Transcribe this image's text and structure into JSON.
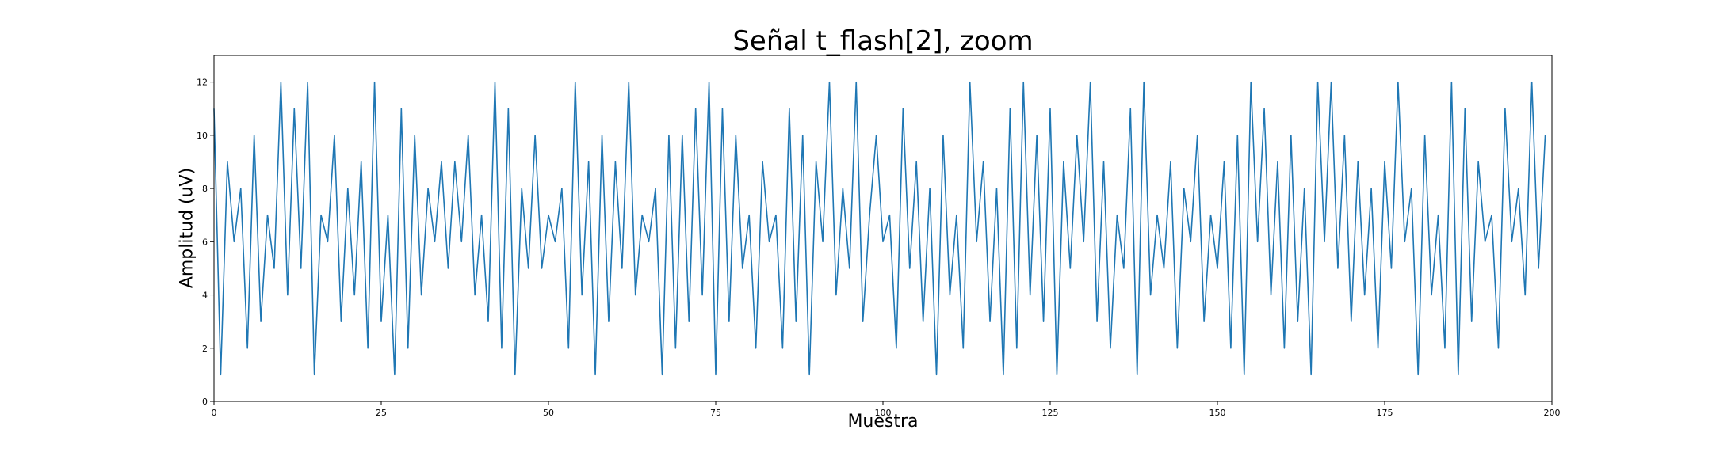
{
  "chart_data": {
    "type": "line",
    "title": "Señal t_flash[2], zoom",
    "xlabel": "Muestra",
    "ylabel": "Amplitud (uV)",
    "xlim": [
      0,
      200
    ],
    "ylim": [
      0,
      13
    ],
    "grid": false,
    "x_ticks": [
      {
        "value": 0,
        "label": "0"
      },
      {
        "value": 25,
        "label": "25"
      },
      {
        "value": 50,
        "label": "50"
      },
      {
        "value": 75,
        "label": "75"
      },
      {
        "value": 100,
        "label": "100"
      },
      {
        "value": 125,
        "label": "125"
      },
      {
        "value": 150,
        "label": "150"
      },
      {
        "value": 175,
        "label": "175"
      },
      {
        "value": 200,
        "label": "200"
      }
    ],
    "y_ticks": [
      {
        "value": 0,
        "label": "0"
      },
      {
        "value": 2,
        "label": "2"
      },
      {
        "value": 4,
        "label": "4"
      },
      {
        "value": 6,
        "label": "6"
      },
      {
        "value": 8,
        "label": "8"
      },
      {
        "value": 10,
        "label": "10"
      },
      {
        "value": 12,
        "label": "12"
      }
    ],
    "series": [
      {
        "color": "#1f77b4",
        "x_start": 0,
        "x_step": 1,
        "y": [
          11,
          1,
          9,
          6,
          8,
          2,
          10,
          3,
          7,
          5,
          12,
          4,
          11,
          5,
          12,
          1,
          7,
          6,
          10,
          3,
          8,
          4,
          9,
          2,
          12,
          3,
          7,
          1,
          11,
          2,
          10,
          4,
          8,
          6,
          9,
          5,
          9,
          6,
          10,
          4,
          7,
          3,
          12,
          2,
          11,
          1,
          8,
          5,
          10,
          5,
          7,
          6,
          8,
          2,
          12,
          4,
          9,
          1,
          10,
          3,
          9,
          5,
          12,
          4,
          7,
          6,
          8,
          1,
          10,
          2,
          10,
          3,
          11,
          4,
          12,
          1,
          11,
          3,
          10,
          5,
          7,
          2,
          9,
          6,
          7,
          2,
          11,
          3,
          10,
          1,
          9,
          6,
          12,
          4,
          8,
          5,
          12,
          3,
          7,
          10,
          6,
          7,
          2,
          11,
          5,
          9,
          3,
          8,
          1,
          10,
          4,
          7,
          2,
          12,
          6,
          9,
          3,
          8,
          1,
          11,
          2,
          12,
          4,
          10,
          3,
          11,
          1,
          9,
          5,
          10,
          6,
          12,
          3,
          9,
          2,
          7,
          5,
          11,
          1,
          12,
          4,
          7,
          5,
          9,
          2,
          8,
          6,
          10,
          3,
          7,
          5,
          9,
          2,
          10,
          1,
          12,
          6,
          11,
          4,
          9,
          2,
          10,
          3,
          8,
          1,
          12,
          6,
          12,
          5,
          10,
          3,
          9,
          4,
          8,
          2,
          9,
          5,
          12,
          6,
          8,
          1,
          10,
          4,
          7,
          2,
          12,
          1,
          11,
          3,
          9,
          6,
          7,
          2,
          11,
          6,
          8,
          4,
          12,
          5,
          10
        ]
      }
    ]
  }
}
